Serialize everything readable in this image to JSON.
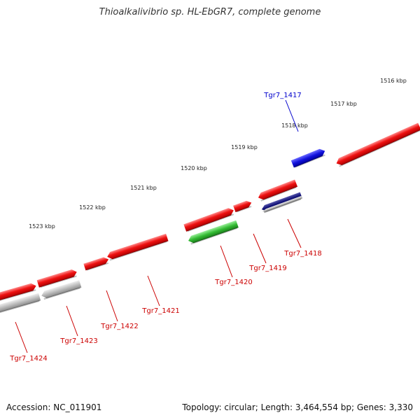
{
  "title": "Thioalkalivibrio sp. HL-EbGR7, complete genome",
  "footer": {
    "accession": "Accession: NC_011901",
    "topology": "Topology: circular; Length: 3,464,554 bp; Genes: 3,330"
  },
  "colors": {
    "backbone": "#8c8c8c",
    "cds": "#ee1111",
    "rrna_like": "#bbbbbb",
    "green_feature": "#33bb33",
    "blue_feature": "#1111dd",
    "navy_feature": "#111177",
    "tick": "#1a7a1a",
    "label_red": "#cc0000",
    "label_blue": "#0000cc"
  },
  "kbp_labels": [
    {
      "text": "1516 kbp",
      "kbp": 1516
    },
    {
      "text": "1517 kbp",
      "kbp": 1517
    },
    {
      "text": "1518 kbp",
      "kbp": 1518
    },
    {
      "text": "1519 kbp",
      "kbp": 1519
    },
    {
      "text": "1520 kbp",
      "kbp": 1520
    },
    {
      "text": "1521 kbp",
      "kbp": 1521
    },
    {
      "text": "1522 kbp",
      "kbp": 1522
    },
    {
      "text": "1523 kbp",
      "kbp": 1523
    }
  ],
  "genes": [
    {
      "label": "Tgr7_1417",
      "color": "blue"
    },
    {
      "label": "Tgr7_1418",
      "color": "red"
    },
    {
      "label": "Tgr7_1419",
      "color": "red"
    },
    {
      "label": "Tgr7_1420",
      "color": "red"
    },
    {
      "label": "Tgr7_1421",
      "color": "red"
    },
    {
      "label": "Tgr7_1422",
      "color": "red"
    },
    {
      "label": "Tgr7_1423",
      "color": "red"
    },
    {
      "label": "Tgr7_1424",
      "color": "red"
    }
  ]
}
